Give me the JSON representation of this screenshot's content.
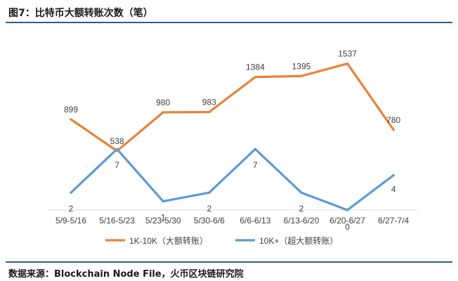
{
  "title": "图7：比特币大额转账次数（笔）",
  "source": "数据来源：Blockchain Node File，火币区块链研究院",
  "colors": {
    "rule": "#2e5f8a",
    "series1": "#e8833a",
    "series2": "#5b9bd5",
    "text": "#404040"
  },
  "chart_data": {
    "type": "line",
    "categories": [
      "5/9-5/16",
      "5/16-5/23",
      "5/23-5/30",
      "5/30-6/6",
      "6/6-6/13",
      "6/13-6/20",
      "6/20-6/27",
      "6/27-7/4"
    ],
    "series": [
      {
        "name": "1K-10K（大额转账）",
        "values": [
          899,
          538,
          980,
          983,
          1384,
          1395,
          1537,
          780
        ],
        "labels": [
          "899",
          "538",
          "980",
          "983",
          "1384",
          "1395",
          "1537",
          "780"
        ]
      },
      {
        "name": "10K+（超大额转账）",
        "values": [
          2,
          7,
          1,
          2,
          7,
          2,
          0,
          4
        ],
        "labels": [
          "2",
          "7",
          "1",
          "2",
          "7",
          "2",
          "0",
          "4"
        ]
      }
    ],
    "grid": false,
    "legend": "bottom"
  }
}
